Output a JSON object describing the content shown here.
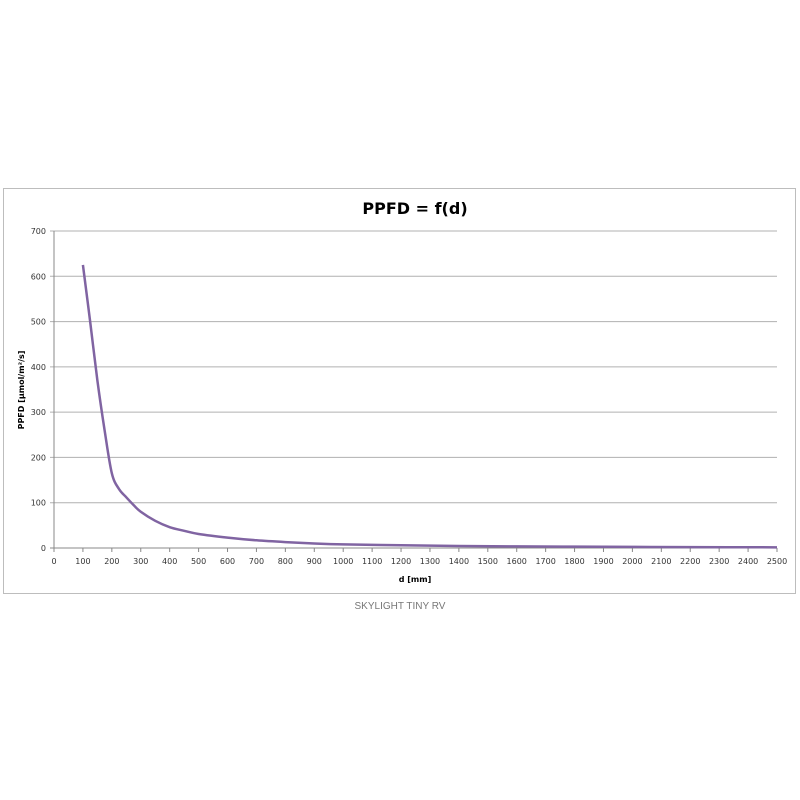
{
  "chart_data": {
    "type": "line",
    "title": "PPFD = f(d)",
    "xlabel": "d [mm]",
    "ylabel": "PPFD [µmol/m²/s]",
    "xlim": [
      0,
      2500
    ],
    "ylim": [
      0,
      700
    ],
    "xticks": [
      0,
      100,
      200,
      300,
      400,
      500,
      600,
      700,
      800,
      900,
      1000,
      1100,
      1200,
      1300,
      1400,
      1500,
      1600,
      1700,
      1800,
      1900,
      2000,
      2100,
      2200,
      2300,
      2400,
      2500
    ],
    "yticks": [
      0,
      100,
      200,
      300,
      400,
      500,
      600,
      700
    ],
    "grid": "horizontal",
    "legend": "none",
    "colors": {
      "line": "#8064A2",
      "grid": "#b0b0b0"
    },
    "series": [
      {
        "x": [
          100,
          125,
          150,
          175,
          200,
          225,
          250,
          275,
          300,
          350,
          400,
          450,
          500,
          600,
          700,
          800,
          900,
          1000,
          1200,
          1400,
          1600,
          1800,
          2000,
          2200,
          2500
        ],
        "y": [
          625,
          500,
          370,
          260,
          165,
          130,
          112,
          95,
          80,
          60,
          46,
          38,
          31,
          23,
          17,
          13,
          10,
          8,
          6,
          4.5,
          3.5,
          3,
          2.5,
          2,
          1.5
        ]
      }
    ]
  },
  "caption": "SKYLIGHT TINY RV"
}
